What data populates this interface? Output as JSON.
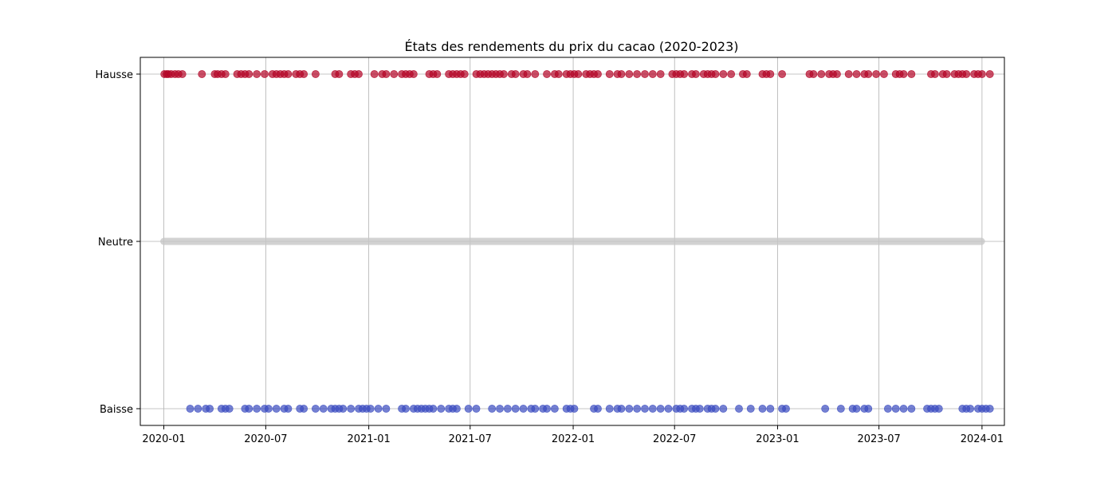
{
  "chart_data": {
    "type": "scatter",
    "title": "États des rendements du prix du cacao (2020-2023)",
    "xlabel": "",
    "ylabel": "",
    "grid": true,
    "xlim": [
      "2019-11-20",
      "2024-02-10"
    ],
    "x_ticks": [
      "2020-01-01",
      "2020-07-01",
      "2021-01-01",
      "2021-07-01",
      "2022-01-01",
      "2022-07-01",
      "2023-01-01",
      "2023-07-01",
      "2024-01-01"
    ],
    "x_tick_labels": [
      "2020-01",
      "2020-07",
      "2021-01",
      "2021-07",
      "2022-01",
      "2022-07",
      "2023-01",
      "2023-07",
      "2024-01"
    ],
    "y_categories": [
      "Baisse",
      "Neutre",
      "Hausse"
    ],
    "neutral_range": [
      "2020-01-01",
      "2023-12-31"
    ],
    "series": [
      {
        "name": "Hausse",
        "level": "Hausse",
        "color": "#b40426",
        "dates": [
          "2020-01-02",
          "2020-01-06",
          "2020-01-09",
          "2020-01-14",
          "2020-01-21",
          "2020-01-27",
          "2020-02-03",
          "2020-03-09",
          "2020-04-01",
          "2020-04-06",
          "2020-04-13",
          "2020-04-20",
          "2020-05-11",
          "2020-05-18",
          "2020-05-25",
          "2020-06-01",
          "2020-06-15",
          "2020-06-29",
          "2020-07-13",
          "2020-07-20",
          "2020-07-27",
          "2020-08-03",
          "2020-08-10",
          "2020-08-24",
          "2020-08-31",
          "2020-09-07",
          "2020-09-28",
          "2020-11-02",
          "2020-11-09",
          "2020-11-30",
          "2020-12-07",
          "2020-12-14",
          "2021-01-11",
          "2021-01-25",
          "2021-02-01",
          "2021-02-15",
          "2021-03-01",
          "2021-03-08",
          "2021-03-15",
          "2021-03-22",
          "2021-04-19",
          "2021-04-26",
          "2021-05-03",
          "2021-05-24",
          "2021-05-31",
          "2021-06-07",
          "2021-06-14",
          "2021-06-21",
          "2021-07-12",
          "2021-07-19",
          "2021-07-26",
          "2021-08-02",
          "2021-08-09",
          "2021-08-16",
          "2021-08-23",
          "2021-08-30",
          "2021-09-13",
          "2021-09-20",
          "2021-10-04",
          "2021-10-11",
          "2021-10-25",
          "2021-11-15",
          "2021-11-29",
          "2021-12-06",
          "2021-12-20",
          "2021-12-27",
          "2022-01-03",
          "2022-01-10",
          "2022-01-24",
          "2022-01-31",
          "2022-02-07",
          "2022-02-14",
          "2022-03-07",
          "2022-03-21",
          "2022-03-28",
          "2022-04-11",
          "2022-04-25",
          "2022-05-09",
          "2022-05-23",
          "2022-06-06",
          "2022-06-27",
          "2022-07-04",
          "2022-07-11",
          "2022-07-18",
          "2022-08-01",
          "2022-08-08",
          "2022-08-22",
          "2022-08-29",
          "2022-09-05",
          "2022-09-12",
          "2022-09-26",
          "2022-10-10",
          "2022-10-31",
          "2022-11-07",
          "2022-12-05",
          "2022-12-12",
          "2022-12-19",
          "2023-01-09",
          "2023-02-27",
          "2023-03-06",
          "2023-03-20",
          "2023-04-03",
          "2023-04-10",
          "2023-04-17",
          "2023-05-08",
          "2023-05-22",
          "2023-06-05",
          "2023-06-12",
          "2023-06-26",
          "2023-07-10",
          "2023-07-31",
          "2023-08-07",
          "2023-08-14",
          "2023-08-28",
          "2023-10-02",
          "2023-10-09",
          "2023-10-23",
          "2023-10-30",
          "2023-11-13",
          "2023-11-20",
          "2023-11-27",
          "2023-12-04",
          "2023-12-18",
          "2023-12-25",
          "2024-01-01",
          "2024-01-15"
        ]
      },
      {
        "name": "Neutre",
        "level": "Neutre",
        "color": "#c8c8c8",
        "dates": []
      },
      {
        "name": "Baisse",
        "level": "Baisse",
        "color": "#3b4cc0",
        "dates": [
          "2020-02-17",
          "2020-03-02",
          "2020-03-16",
          "2020-03-23",
          "2020-04-13",
          "2020-04-20",
          "2020-04-27",
          "2020-05-25",
          "2020-06-01",
          "2020-06-15",
          "2020-06-29",
          "2020-07-06",
          "2020-07-20",
          "2020-08-03",
          "2020-08-10",
          "2020-08-31",
          "2020-09-07",
          "2020-09-28",
          "2020-10-12",
          "2020-10-26",
          "2020-11-02",
          "2020-11-09",
          "2020-11-16",
          "2020-11-30",
          "2020-12-14",
          "2020-12-21",
          "2020-12-28",
          "2021-01-04",
          "2021-01-18",
          "2021-02-01",
          "2021-03-01",
          "2021-03-08",
          "2021-03-22",
          "2021-03-29",
          "2021-04-05",
          "2021-04-12",
          "2021-04-19",
          "2021-04-26",
          "2021-05-10",
          "2021-05-24",
          "2021-05-31",
          "2021-06-07",
          "2021-06-28",
          "2021-07-12",
          "2021-08-09",
          "2021-08-23",
          "2021-09-06",
          "2021-09-20",
          "2021-10-04",
          "2021-10-18",
          "2021-10-25",
          "2021-11-08",
          "2021-11-15",
          "2021-11-29",
          "2021-12-20",
          "2021-12-27",
          "2022-01-03",
          "2022-02-07",
          "2022-02-14",
          "2022-03-07",
          "2022-03-21",
          "2022-03-28",
          "2022-04-11",
          "2022-04-25",
          "2022-05-09",
          "2022-05-23",
          "2022-06-06",
          "2022-06-20",
          "2022-07-04",
          "2022-07-11",
          "2022-07-18",
          "2022-08-01",
          "2022-08-08",
          "2022-08-15",
          "2022-08-29",
          "2022-09-05",
          "2022-09-12",
          "2022-09-26",
          "2022-10-24",
          "2022-11-14",
          "2022-12-05",
          "2022-12-19",
          "2023-01-09",
          "2023-01-16",
          "2023-03-27",
          "2023-04-24",
          "2023-05-15",
          "2023-05-22",
          "2023-06-05",
          "2023-06-12",
          "2023-07-17",
          "2023-07-31",
          "2023-08-14",
          "2023-08-28",
          "2023-09-25",
          "2023-10-02",
          "2023-10-09",
          "2023-10-16",
          "2023-11-27",
          "2023-12-04",
          "2023-12-11",
          "2023-12-25",
          "2024-01-01",
          "2024-01-08",
          "2024-01-15"
        ]
      }
    ]
  }
}
